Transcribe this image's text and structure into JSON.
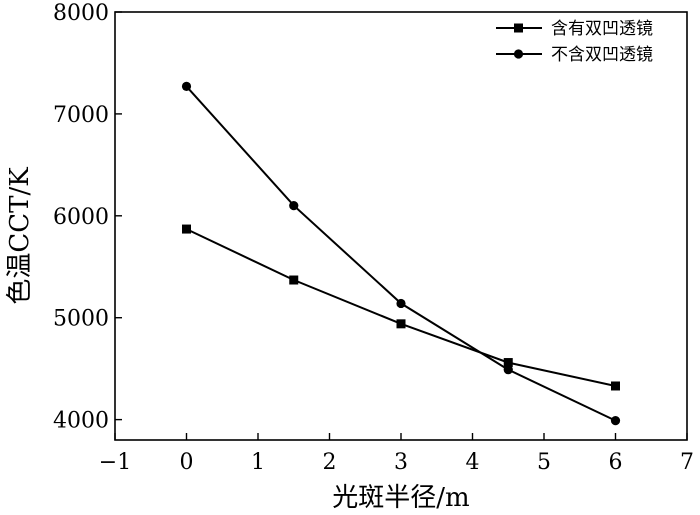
{
  "chart_data": {
    "type": "line",
    "xlabel": "光斑半径/m",
    "ylabel": "色温CCT/K",
    "xlim": [
      -1,
      7
    ],
    "ylim": [
      3800,
      8000
    ],
    "xticks": [
      -1,
      0,
      1,
      2,
      3,
      4,
      5,
      6,
      7
    ],
    "xtick_labels": [
      "−1",
      "0",
      "1",
      "2",
      "3",
      "4",
      "5",
      "6",
      "7"
    ],
    "yticks": [
      4000,
      5000,
      6000,
      7000,
      8000
    ],
    "ytick_labels": [
      "4000",
      "5000",
      "6000",
      "7000",
      "8000"
    ],
    "grid": false,
    "legend_position": "top-right",
    "series": [
      {
        "name": "含有双凹透镜",
        "marker": "square",
        "color": "#000000",
        "x": [
          0,
          1.5,
          3,
          4.5,
          6
        ],
        "y": [
          5870,
          5370,
          4940,
          4560,
          4330
        ]
      },
      {
        "name": "不含双凹透镜",
        "marker": "circle",
        "color": "#000000",
        "x": [
          0,
          1.5,
          3,
          4.5,
          6
        ],
        "y": [
          7270,
          6100,
          5140,
          4490,
          3990
        ]
      }
    ]
  }
}
